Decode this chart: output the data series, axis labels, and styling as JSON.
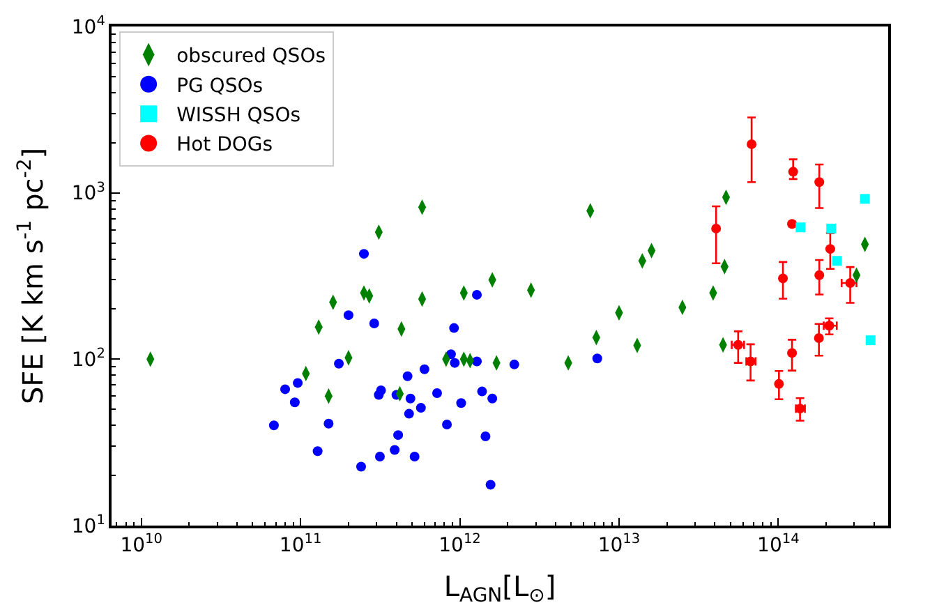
{
  "chart_data": {
    "type": "scatter",
    "xlabel": "L$_{AGN}$[L$_{⊙}$]",
    "ylabel": "SFE [K km s$^{-1}$ pc$^{-2}$]",
    "log": "xy",
    "xlim": [
      6500000000.0,
      490000000000000.0
    ],
    "ylim": [
      10,
      10000
    ],
    "xticks": [
      {
        "value": 10000000000.0,
        "label": "10$^{10}$"
      },
      {
        "value": 100000000000.0,
        "label": "10$^{11}$"
      },
      {
        "value": 1000000000000.0,
        "label": "10$^{12}$"
      },
      {
        "value": 10000000000000.0,
        "label": "10$^{13}$"
      },
      {
        "value": 100000000000000.0,
        "label": "10$^{14}$"
      }
    ],
    "yticks": [
      {
        "value": 10,
        "label": "10$^{1}$"
      },
      {
        "value": 100,
        "label": "10$^{2}$"
      },
      {
        "value": 1000,
        "label": "10$^{3}$"
      },
      {
        "value": 10000,
        "label": "10$^{4}$"
      }
    ],
    "legend": "top left",
    "series": [
      {
        "name": "obscured QSOs",
        "color": "#008000",
        "marker": "diamond",
        "x": [
          11400000000.0,
          580000000000.0,
          310000000000.0,
          250000000000.0,
          270000000000.0,
          580000000000.0,
          160000000000.0,
          130000000000.0,
          430000000000.0,
          200000000000.0,
          108000000000.0,
          150000000000.0,
          420000000000.0,
          6600000000000.0,
          16000000000000.0,
          14000000000000.0,
          1600000000000.0,
          2800000000000.0,
          1060000000000.0,
          10000000000000.0,
          7200000000000.0,
          13000000000000.0,
          820000000000.0,
          1060000000000.0,
          1160000000000.0,
          1700000000000.0,
          4800000000000.0,
          47000000000000.0,
          46000000000000.0,
          39000000000000.0,
          25000000000000.0,
          45000000000000.0,
          350000000000000.0,
          310000000000000.0
        ],
        "values": [
          100,
          820,
          580,
          250,
          240,
          230,
          220,
          156,
          152,
          102,
          82,
          60,
          62,
          780,
          450,
          390,
          300,
          260,
          250,
          190,
          135,
          121,
          100,
          100,
          98,
          95,
          95,
          940,
          360,
          250,
          205,
          122,
          490,
          320
        ]
      },
      {
        "name": "PG QSOs",
        "color": "#0000ff",
        "marker": "circle",
        "x": [
          250000000000.0,
          200000000000.0,
          290000000000.0,
          174000000000.0,
          600000000000.0,
          470000000000.0,
          80000000000.0,
          96000000000.0,
          92000000000.0,
          68000000000.0,
          320000000000.0,
          310000000000.0,
          400000000000.0,
          490000000000.0,
          480000000000.0,
          570000000000.0,
          150000000000.0,
          410000000000.0,
          128000000000.0,
          390000000000.0,
          315000000000.0,
          520000000000.0,
          240000000000.0,
          720000000000.0,
          1280000000000.0,
          920000000000.0,
          880000000000.0,
          930000000000.0,
          1280000000000.0,
          2200000000000.0,
          1380000000000.0,
          1600000000000.0,
          1020000000000.0,
          830000000000.0,
          1450000000000.0,
          1560000000000.0,
          7300000000000.0
        ],
        "values": [
          430,
          184,
          164,
          94,
          87,
          79,
          66,
          72,
          55,
          40,
          65,
          61,
          61,
          58,
          47,
          51,
          41,
          35,
          28,
          28.5,
          26,
          26,
          22.6,
          62.5,
          244,
          154,
          107,
          95,
          97,
          93,
          64,
          58,
          54.5,
          40.5,
          34.4,
          17.6,
          101
        ]
      },
      {
        "name": "WISSH QSOs",
        "color": "#00ffff",
        "marker": "square",
        "x": [
          350000000000000.0,
          138000000000000.0,
          215000000000000.0,
          234000000000000.0,
          380000000000000.0
        ],
        "values": [
          920,
          620,
          610,
          390,
          130
        ]
      },
      {
        "name": "Hot DOGs",
        "color": "#ff0000",
        "marker": "circle",
        "x": [
          68000000000000.0,
          124000000000000.0,
          181000000000000.0,
          122000000000000.0,
          40700000000000.0,
          212000000000000.0,
          107000000000000.0,
          181000000000000.0,
          283000000000000.0,
          209000000000000.0,
          180000000000000.0,
          56000000000000.0,
          67000000000000.0,
          122000000000000.0,
          101000000000000.0,
          137000000000000.0
        ],
        "values": [
          1960,
          1340,
          1160,
          650,
          610,
          460,
          306,
          320,
          287,
          159,
          134,
          122,
          97,
          109,
          71,
          50.5
        ],
        "errors": [
          [
            1160,
            2840
          ],
          [
            1210,
            1590
          ],
          [
            810,
            1480
          ],
          null,
          [
            377,
            830
          ],
          [
            349,
            573
          ],
          [
            231,
            384
          ],
          [
            245,
            395
          ],
          [
            218,
            358
          ],
          [
            141,
            176
          ],
          [
            105,
            163
          ],
          [
            95,
            147
          ],
          [
            74.5,
            123
          ],
          [
            85.5,
            131
          ],
          [
            57.5,
            85
          ],
          [
            42.7,
            58.3
          ]
        ],
        "xerrors": [
          null,
          null,
          null,
          null,
          null,
          null,
          null,
          null,
          [
            250000000000000.0,
            310000000000000.0
          ],
          [
            193000000000000.0,
            233000000000000.0
          ],
          null,
          [
            51000000000000.0,
            61000000000000.0
          ],
          [
            63000000000000.0,
            72000000000000.0
          ],
          null,
          null,
          [
            129000000000000.0,
            147000000000000.0
          ]
        ]
      }
    ]
  }
}
